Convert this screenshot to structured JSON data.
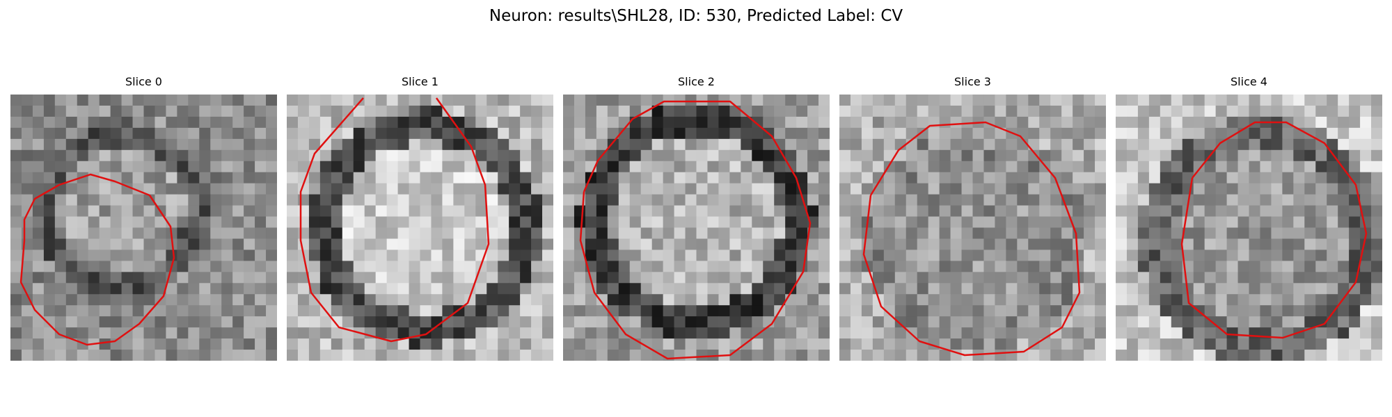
{
  "figure": {
    "title": "Neuron: results\\SHL28, ID: 530, Predicted Label: CV",
    "contour_color": "#e01010"
  },
  "panels": [
    {
      "label": "Slice 0"
    },
    {
      "label": "Slice 1"
    },
    {
      "label": "Slice 2"
    },
    {
      "label": "Slice 3"
    },
    {
      "label": "Slice 4"
    }
  ]
}
